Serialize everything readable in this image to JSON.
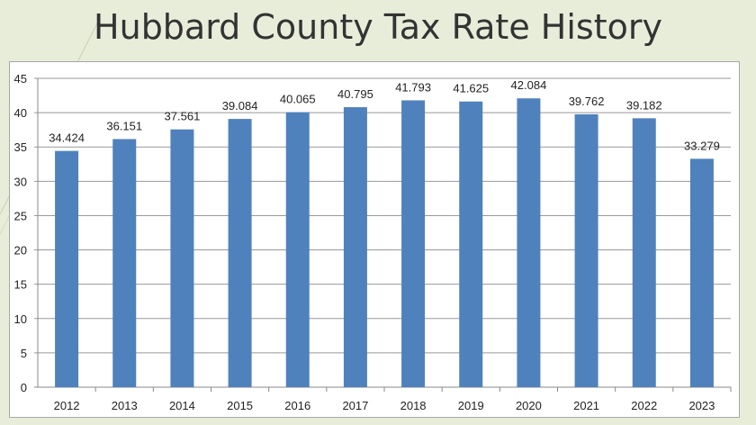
{
  "title": "Hubbard County Tax Rate History",
  "chart_data": {
    "type": "bar",
    "title": "Hubbard County Tax Rate History",
    "categories": [
      "2012",
      "2013",
      "2014",
      "2015",
      "2016",
      "2017",
      "2018",
      "2019",
      "2020",
      "2021",
      "2022",
      "2023"
    ],
    "values": [
      34.424,
      36.151,
      37.561,
      39.084,
      40.065,
      40.795,
      41.793,
      41.625,
      42.084,
      39.762,
      39.182,
      33.279
    ],
    "data_labels": [
      "34.424",
      "36.151",
      "37.561",
      "39.084",
      "40.065",
      "40.795",
      "41.793",
      "41.625",
      "42.084",
      "39.762",
      "39.182",
      "33.279"
    ],
    "xlabel": "",
    "ylabel": "",
    "ylim": [
      0,
      45
    ],
    "yticks": [
      0,
      5,
      10,
      15,
      20,
      25,
      30,
      35,
      40,
      45
    ],
    "grid": true,
    "legend": "none",
    "bar_color": "#4f81bd"
  }
}
